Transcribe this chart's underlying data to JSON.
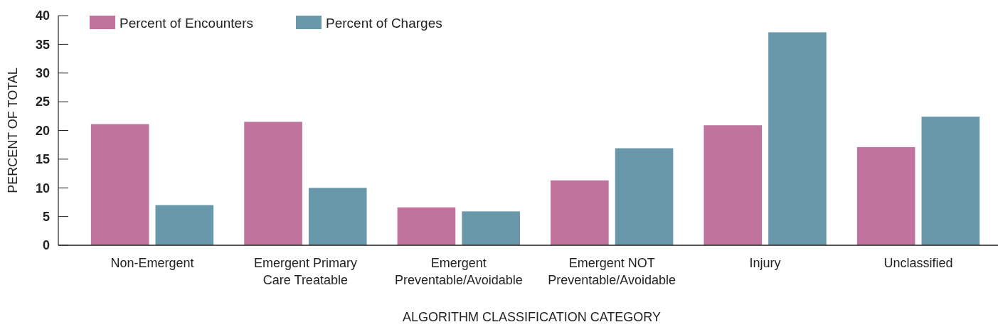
{
  "chart_data": {
    "type": "bar",
    "xlabel": "ALGORITHM CLASSIFICATION CATEGORY",
    "ylabel": "PERCENT OF TOTAL",
    "categories": [
      "Non-Emergent",
      "Emergent Primary Care Treatable",
      "Emergent Preventable/Avoidable",
      "Emergent NOT Preventable/Avoidable",
      "Injury",
      "Unclassified"
    ],
    "series": [
      {
        "name": "Percent of Encounters",
        "color": "#c0739c",
        "values": [
          21.1,
          21.5,
          6.6,
          11.3,
          20.9,
          17.1
        ]
      },
      {
        "name": "Percent of Charges",
        "color": "#6a98ab",
        "values": [
          7.0,
          10.0,
          5.9,
          16.9,
          37.1,
          22.4
        ]
      }
    ],
    "ylim": [
      0,
      40
    ],
    "yticks": [
      0,
      5,
      10,
      15,
      20,
      25,
      30,
      35,
      40
    ],
    "grid": false,
    "legend": "top left"
  }
}
